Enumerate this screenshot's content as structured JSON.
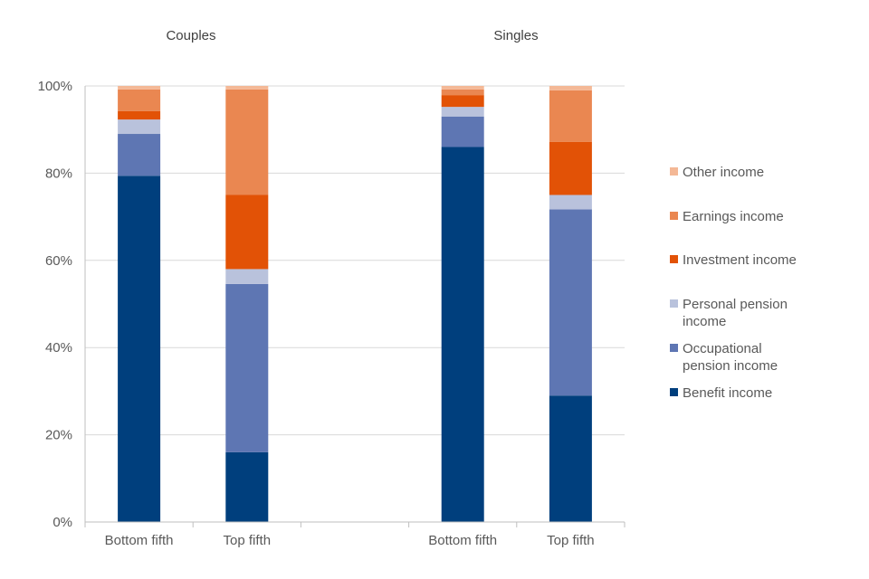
{
  "chart_data": {
    "type": "bar",
    "stacked": true,
    "percent_axis": true,
    "groups": [
      {
        "title": "Couples",
        "categories": [
          "Bottom fifth",
          "Top fifth"
        ]
      },
      {
        "title": "Singles",
        "categories": [
          "Bottom fifth",
          "Top fifth"
        ]
      }
    ],
    "categories": [
      "Bottom fifth",
      "Top fifth",
      "Bottom fifth",
      "Top fifth"
    ],
    "series": [
      {
        "name": "Benefit income",
        "color": "#003f7d",
        "values": [
          79.4,
          16.0,
          86.0,
          29.0
        ]
      },
      {
        "name": "Occupational pension income",
        "color": "#5e76b3",
        "values": [
          9.6,
          38.6,
          7.0,
          42.7
        ]
      },
      {
        "name": "Personal pension income",
        "color": "#b9c2dc",
        "values": [
          3.3,
          3.4,
          2.2,
          3.3
        ]
      },
      {
        "name": "Investment income",
        "color": "#e25206",
        "values": [
          1.9,
          17.0,
          2.7,
          12.2
        ]
      },
      {
        "name": "Earnings income",
        "color": "#ea8751",
        "values": [
          5.0,
          24.2,
          1.3,
          11.8
        ]
      },
      {
        "name": "Other income",
        "color": "#f4b896",
        "values": [
          0.8,
          0.8,
          0.8,
          1.0
        ]
      }
    ],
    "yticks": [
      "0%",
      "20%",
      "40%",
      "60%",
      "80%",
      "100%"
    ],
    "ylim": [
      0,
      100
    ],
    "grid": true,
    "legend_position": "right"
  }
}
